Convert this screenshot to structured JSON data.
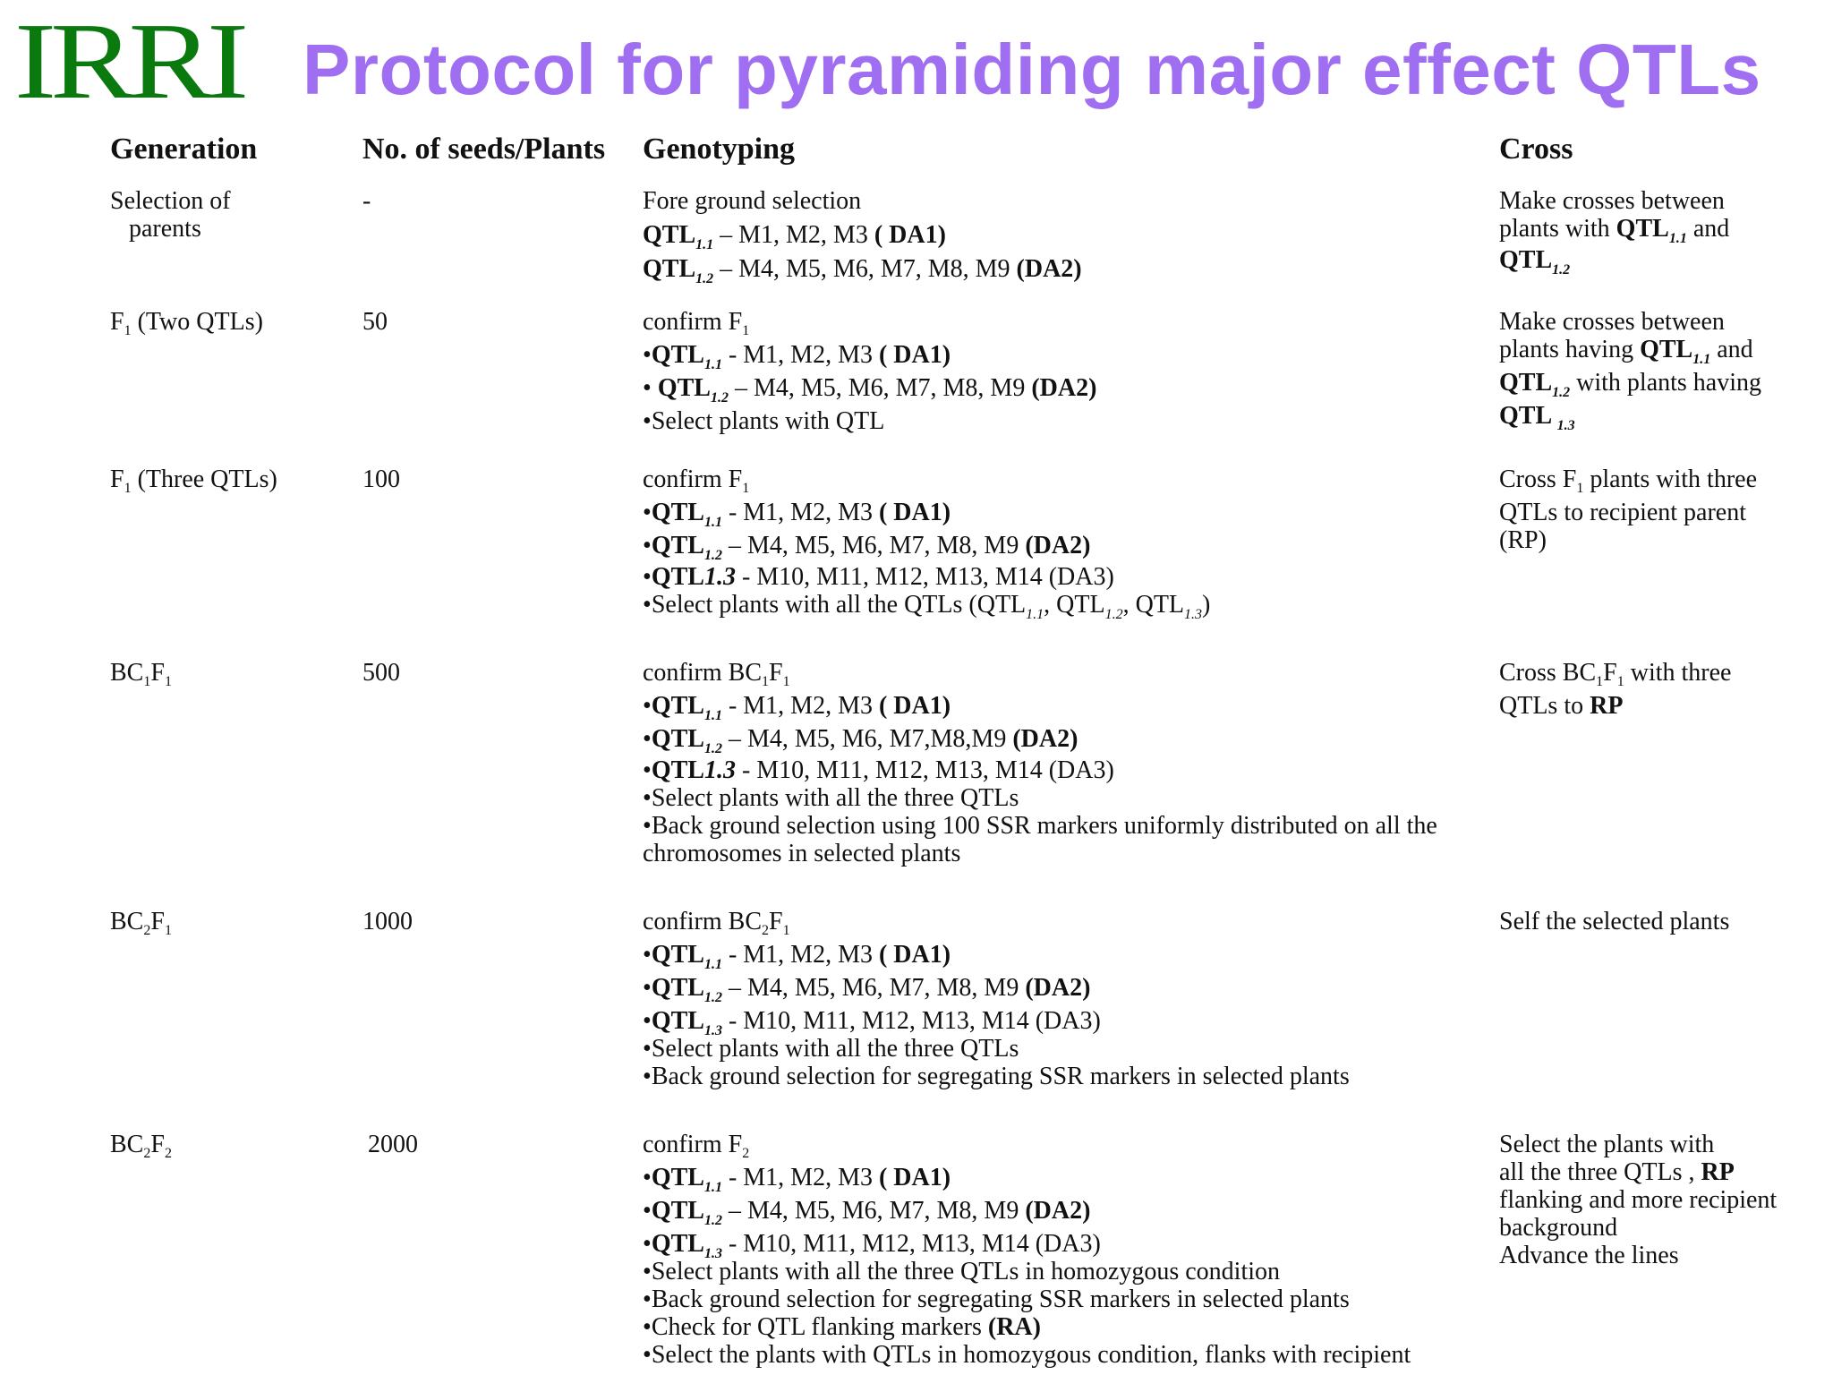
{
  "logo": "IRRI",
  "title": "Protocol for pyramiding major effect QTLs",
  "headers": {
    "generation": "Generation",
    "seeds": "No. of seeds/Plants",
    "genotyping": "Genotyping",
    "cross": "Cross"
  },
  "common": {
    "qtl": "QTL",
    "qtl_l": "QTL ",
    "q11": "1.1",
    "q12": "1.2",
    "q13": "1.3",
    "q13b": "1.3",
    "one": "1",
    "two": "2",
    "confirm": "confirm ",
    "bullet": "•",
    "m123": " - M1, M2, M3 ",
    "m123b": " – M1, M2, M3 ",
    "da1": "( DA1)",
    "m4_9": " – M4, M5, M6, M7, M8, M9 ",
    "m4_9b": " –  M4, M5, M6, M7, M8, M9 ",
    "m4_9c": " –  M4, M5, M6, M7,M8,M9 ",
    "da2": "(DA2)",
    "m10_14": " -  M10, M11, M12, M13, M14 (DA3)",
    "qtl13text": "QTL1.3",
    "comma": ", ",
    "paren_open": "(",
    "paren_close": ")"
  },
  "rows": [
    {
      "generation": [
        "Selection of",
        "parents"
      ],
      "seeds": "-",
      "genotyping_first": "Fore ground selection",
      "cross": [
        "Make crosses between",
        "plants with ",
        " and"
      ]
    },
    {
      "generation_prefix": "F",
      "generation_suffix": " (Two QTLs)",
      "seeds": "50",
      "confirm": "F",
      "select": "Select plants with QTL",
      "cross": [
        "Make crosses between",
        "plants having ",
        " and",
        " with plants having"
      ]
    },
    {
      "generation_prefix": "F",
      "generation_suffix": " (Three QTLs)",
      "seeds": "100",
      "confirm": "F",
      "select": "Select plants with all the QTLs (",
      "cross": [
        "Cross F",
        " plants with three",
        "QTLs to recipient parent",
        "(RP)"
      ]
    },
    {
      "generation": "BC",
      "seeds": "500",
      "confirm": "BC",
      "select": "Select plants with all the three  QTLs",
      "bg": "Back ground selection using 100 SSR markers uniformly distributed on all  the",
      "bg2": "chromosomes in selected plants",
      "cross": [
        "Cross BC",
        " with three",
        "QTLs to ",
        "RP"
      ]
    },
    {
      "generation": "BC",
      "seeds": "1000",
      "confirm": "BC",
      "select": "Select plants with all the three  QTLs",
      "bg": "Back ground selection  for segregating SSR markers in selected plants",
      "cross": [
        "Self the selected plants"
      ]
    },
    {
      "generation": "BC",
      "seeds": "2000",
      "confirm": "F",
      "select": "Select plants with all the three  QTLs in homozygous condition",
      "bg": "Back ground selection  for segregating SSR markers in selected plants",
      "flank": "Check for QTL flanking markers ",
      "flank_bold": "(RA)",
      "last": "Select the plants with QTLs in homozygous condition, flanks with recipient",
      "cross": [
        "Select the plants with",
        " all the three QTLs , ",
        "RP",
        "flanking and more recipient",
        "background",
        "Advance the lines"
      ]
    }
  ]
}
